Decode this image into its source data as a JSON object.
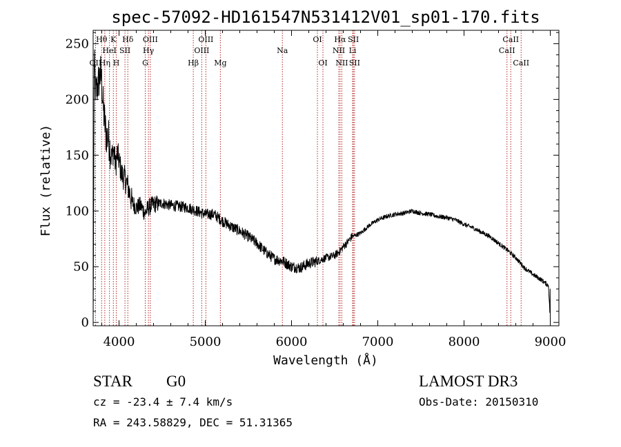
{
  "chart_data": {
    "type": "line",
    "title": "spec-57092-HD161547N531412V01_sp01-170.fits",
    "xlabel": "Wavelength (Å)",
    "ylabel": "Flux (relative)",
    "xlim": [
      3700,
      9100
    ],
    "ylim": [
      -3,
      262
    ],
    "x_ticks": [
      4000,
      5000,
      6000,
      7000,
      8000,
      9000
    ],
    "y_ticks": [
      0,
      50,
      100,
      150,
      200,
      250
    ],
    "grid": false,
    "line_color": "#000000",
    "marker_color": "#b22222",
    "spectrum_anchors": [
      [
        3700,
        0
      ],
      [
        3705,
        90
      ],
      [
        3712,
        235
      ],
      [
        3730,
        205
      ],
      [
        3760,
        215
      ],
      [
        3790,
        225
      ],
      [
        3820,
        190
      ],
      [
        3850,
        168
      ],
      [
        3880,
        165
      ],
      [
        3910,
        148
      ],
      [
        3940,
        155
      ],
      [
        3960,
        140
      ],
      [
        3980,
        152
      ],
      [
        4000,
        145
      ],
      [
        4030,
        133
      ],
      [
        4060,
        130
      ],
      [
        4090,
        125
      ],
      [
        4110,
        120
      ],
      [
        4150,
        108
      ],
      [
        4200,
        103
      ],
      [
        4250,
        105
      ],
      [
        4300,
        98
      ],
      [
        4340,
        103
      ],
      [
        4400,
        106
      ],
      [
        4500,
        107
      ],
      [
        4600,
        105
      ],
      [
        4700,
        104
      ],
      [
        4800,
        103
      ],
      [
        4900,
        100
      ],
      [
        5000,
        97
      ],
      [
        5100,
        97
      ],
      [
        5200,
        91
      ],
      [
        5300,
        86
      ],
      [
        5400,
        82
      ],
      [
        5500,
        77
      ],
      [
        5600,
        71
      ],
      [
        5700,
        63
      ],
      [
        5800,
        57
      ],
      [
        5900,
        55
      ],
      [
        6000,
        50
      ],
      [
        6100,
        49
      ],
      [
        6200,
        53
      ],
      [
        6300,
        55
      ],
      [
        6400,
        58
      ],
      [
        6500,
        60
      ],
      [
        6560,
        64
      ],
      [
        6600,
        68
      ],
      [
        6650,
        72
      ],
      [
        6700,
        77
      ],
      [
        6800,
        80
      ],
      [
        6900,
        87
      ],
      [
        7000,
        92
      ],
      [
        7100,
        95
      ],
      [
        7200,
        97
      ],
      [
        7300,
        98
      ],
      [
        7400,
        100
      ],
      [
        7500,
        98
      ],
      [
        7600,
        97
      ],
      [
        7700,
        95
      ],
      [
        7800,
        94
      ],
      [
        7900,
        92
      ],
      [
        8000,
        88
      ],
      [
        8100,
        85
      ],
      [
        8200,
        81
      ],
      [
        8300,
        77
      ],
      [
        8400,
        71
      ],
      [
        8500,
        65
      ],
      [
        8600,
        58
      ],
      [
        8700,
        49
      ],
      [
        8800,
        43
      ],
      [
        8900,
        38
      ],
      [
        8980,
        33
      ],
      [
        9000,
        0
      ]
    ],
    "emission_lines": [
      {
        "label": "OII",
        "wavelength": 3727,
        "row": 2
      },
      {
        "label": "Hθ",
        "wavelength": 3798,
        "row": 0
      },
      {
        "label": "Hη",
        "wavelength": 3835,
        "row": 2
      },
      {
        "label": "HeI",
        "wavelength": 3889,
        "row": 1
      },
      {
        "label": "K",
        "wavelength": 3934,
        "row": 0
      },
      {
        "label": "H",
        "wavelength": 3968,
        "row": 2
      },
      {
        "label": "SII",
        "wavelength": 4069,
        "row": 1
      },
      {
        "label": "Hδ",
        "wavelength": 4102,
        "row": 0
      },
      {
        "label": "G",
        "wavelength": 4304,
        "row": 2
      },
      {
        "label": "Hγ",
        "wavelength": 4341,
        "row": 1
      },
      {
        "label": "OIII",
        "wavelength": 4363,
        "row": 0
      },
      {
        "label": "Hβ",
        "wavelength": 4861,
        "row": 2
      },
      {
        "label": "OIII",
        "wavelength": 4959,
        "row": 1
      },
      {
        "label": "OIII",
        "wavelength": 5007,
        "row": 0
      },
      {
        "label": "Mg",
        "wavelength": 5175,
        "row": 2
      },
      {
        "label": "Na",
        "wavelength": 5894,
        "row": 1
      },
      {
        "label": "OI",
        "wavelength": 6300,
        "row": 0
      },
      {
        "label": "OI",
        "wavelength": 6364,
        "row": 2
      },
      {
        "label": "NII",
        "wavelength": 6548,
        "row": 1
      },
      {
        "label": "Hα",
        "wavelength": 6563,
        "row": 0
      },
      {
        "label": "NII",
        "wavelength": 6583,
        "row": 2
      },
      {
        "label": "Li",
        "wavelength": 6708,
        "row": 1
      },
      {
        "label": "SII",
        "wavelength": 6717,
        "row": 0
      },
      {
        "label": "SII",
        "wavelength": 6731,
        "row": 2
      },
      {
        "label": "CaII",
        "wavelength": 8498,
        "row": 1
      },
      {
        "label": "CaII",
        "wavelength": 8542,
        "row": 0
      },
      {
        "label": "CaII",
        "wavelength": 8662,
        "row": 2
      }
    ]
  },
  "info": {
    "class": "STAR",
    "subclass": "G0",
    "survey": "LAMOST DR3",
    "cz": "cz = -23.4 ± 7.4 km/s",
    "obs_date": "Obs-Date: 20150310",
    "coords": "RA = 243.58829, DEC =  51.31365"
  }
}
